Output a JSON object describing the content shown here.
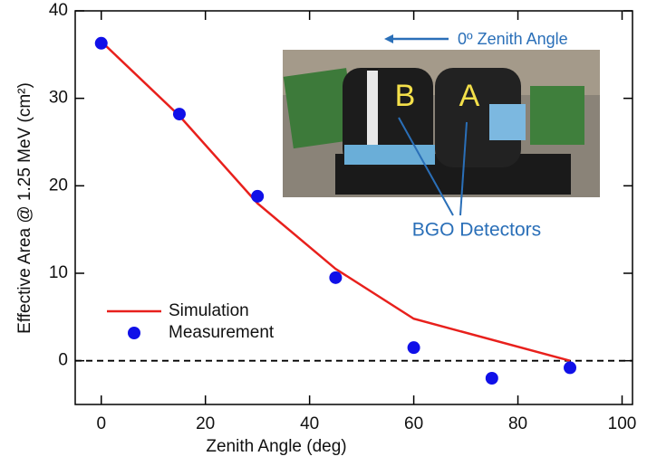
{
  "chart_data": {
    "type": "line",
    "xlabel": "Zenith Angle (deg)",
    "ylabel": "Effective Area @ 1.25 MeV (cm²)",
    "xlim": [
      -5,
      102
    ],
    "ylim": [
      -5,
      40
    ],
    "xticks": [
      0,
      20,
      40,
      60,
      80,
      100
    ],
    "yticks": [
      0,
      10,
      20,
      30,
      40
    ],
    "hline": 0,
    "legend": "lower left",
    "series": [
      {
        "name": "Simulation",
        "color": "#e8201c",
        "style": "line",
        "x": [
          0,
          15,
          30,
          45,
          60,
          90
        ],
        "values": [
          36.5,
          28,
          18,
          10.5,
          4.8,
          0
        ]
      },
      {
        "name": "Measurement",
        "color": "#1010e8",
        "style": "marker",
        "x": [
          0,
          15,
          30,
          45,
          60,
          75,
          90
        ],
        "values": [
          36.3,
          28.2,
          18.8,
          9.5,
          1.5,
          -2,
          -0.8
        ]
      }
    ],
    "annotations": {
      "direction": "0º Zenith Angle",
      "detectors": "BGO Detectors",
      "label_b": "B",
      "label_a": "A"
    }
  }
}
